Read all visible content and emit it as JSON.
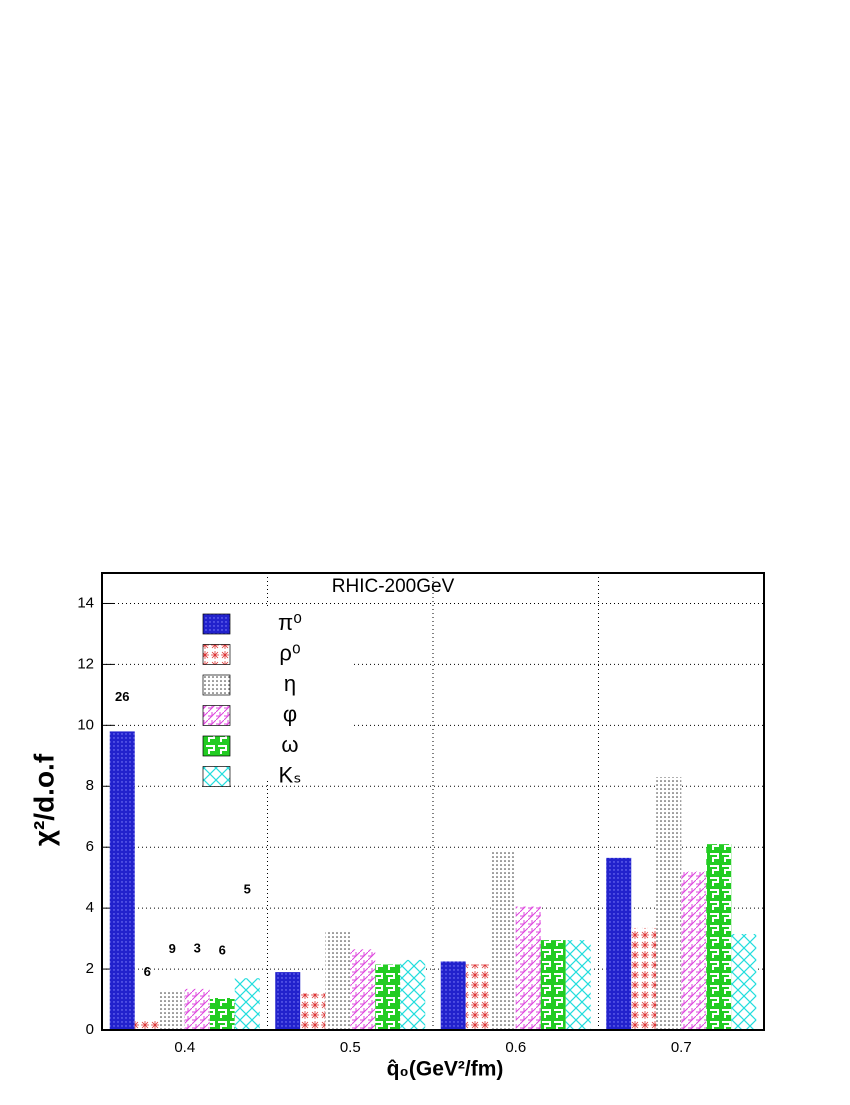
{
  "chart_data": {
    "type": "bar",
    "title": "RHIC-200GeV",
    "x_label": "q̂₀(GeV²/fm)",
    "y_label": "χ²/d.o.f",
    "categories": [
      "0.4",
      "0.5",
      "0.6",
      "0.7"
    ],
    "series": [
      {
        "name": "π⁰",
        "color": "#2222cc",
        "values": [
          9.8,
          1.9,
          2.25,
          5.65
        ]
      },
      {
        "name": "ρ⁰",
        "color": "#dd3333",
        "values": [
          0.35,
          1.2,
          2.15,
          3.35
        ]
      },
      {
        "name": "η",
        "color": "#333333",
        "values": [
          1.3,
          3.25,
          5.85,
          8.3
        ]
      },
      {
        "name": "φ",
        "color": "#dd44dd",
        "values": [
          1.35,
          2.65,
          4.05,
          5.2
        ]
      },
      {
        "name": "ω",
        "color": "#22cc22",
        "values": [
          1.05,
          2.15,
          2.95,
          6.1
        ]
      },
      {
        "name": "Kₛ",
        "color": "#22dddd",
        "values": [
          1.7,
          2.3,
          2.95,
          3.15
        ]
      }
    ],
    "annotations": [
      "26",
      "6",
      "9",
      "3",
      "6",
      "5"
    ],
    "ylim": [
      0,
      15
    ],
    "yticks": [
      0,
      2,
      4,
      6,
      8,
      10,
      12,
      14
    ],
    "grid": true
  }
}
